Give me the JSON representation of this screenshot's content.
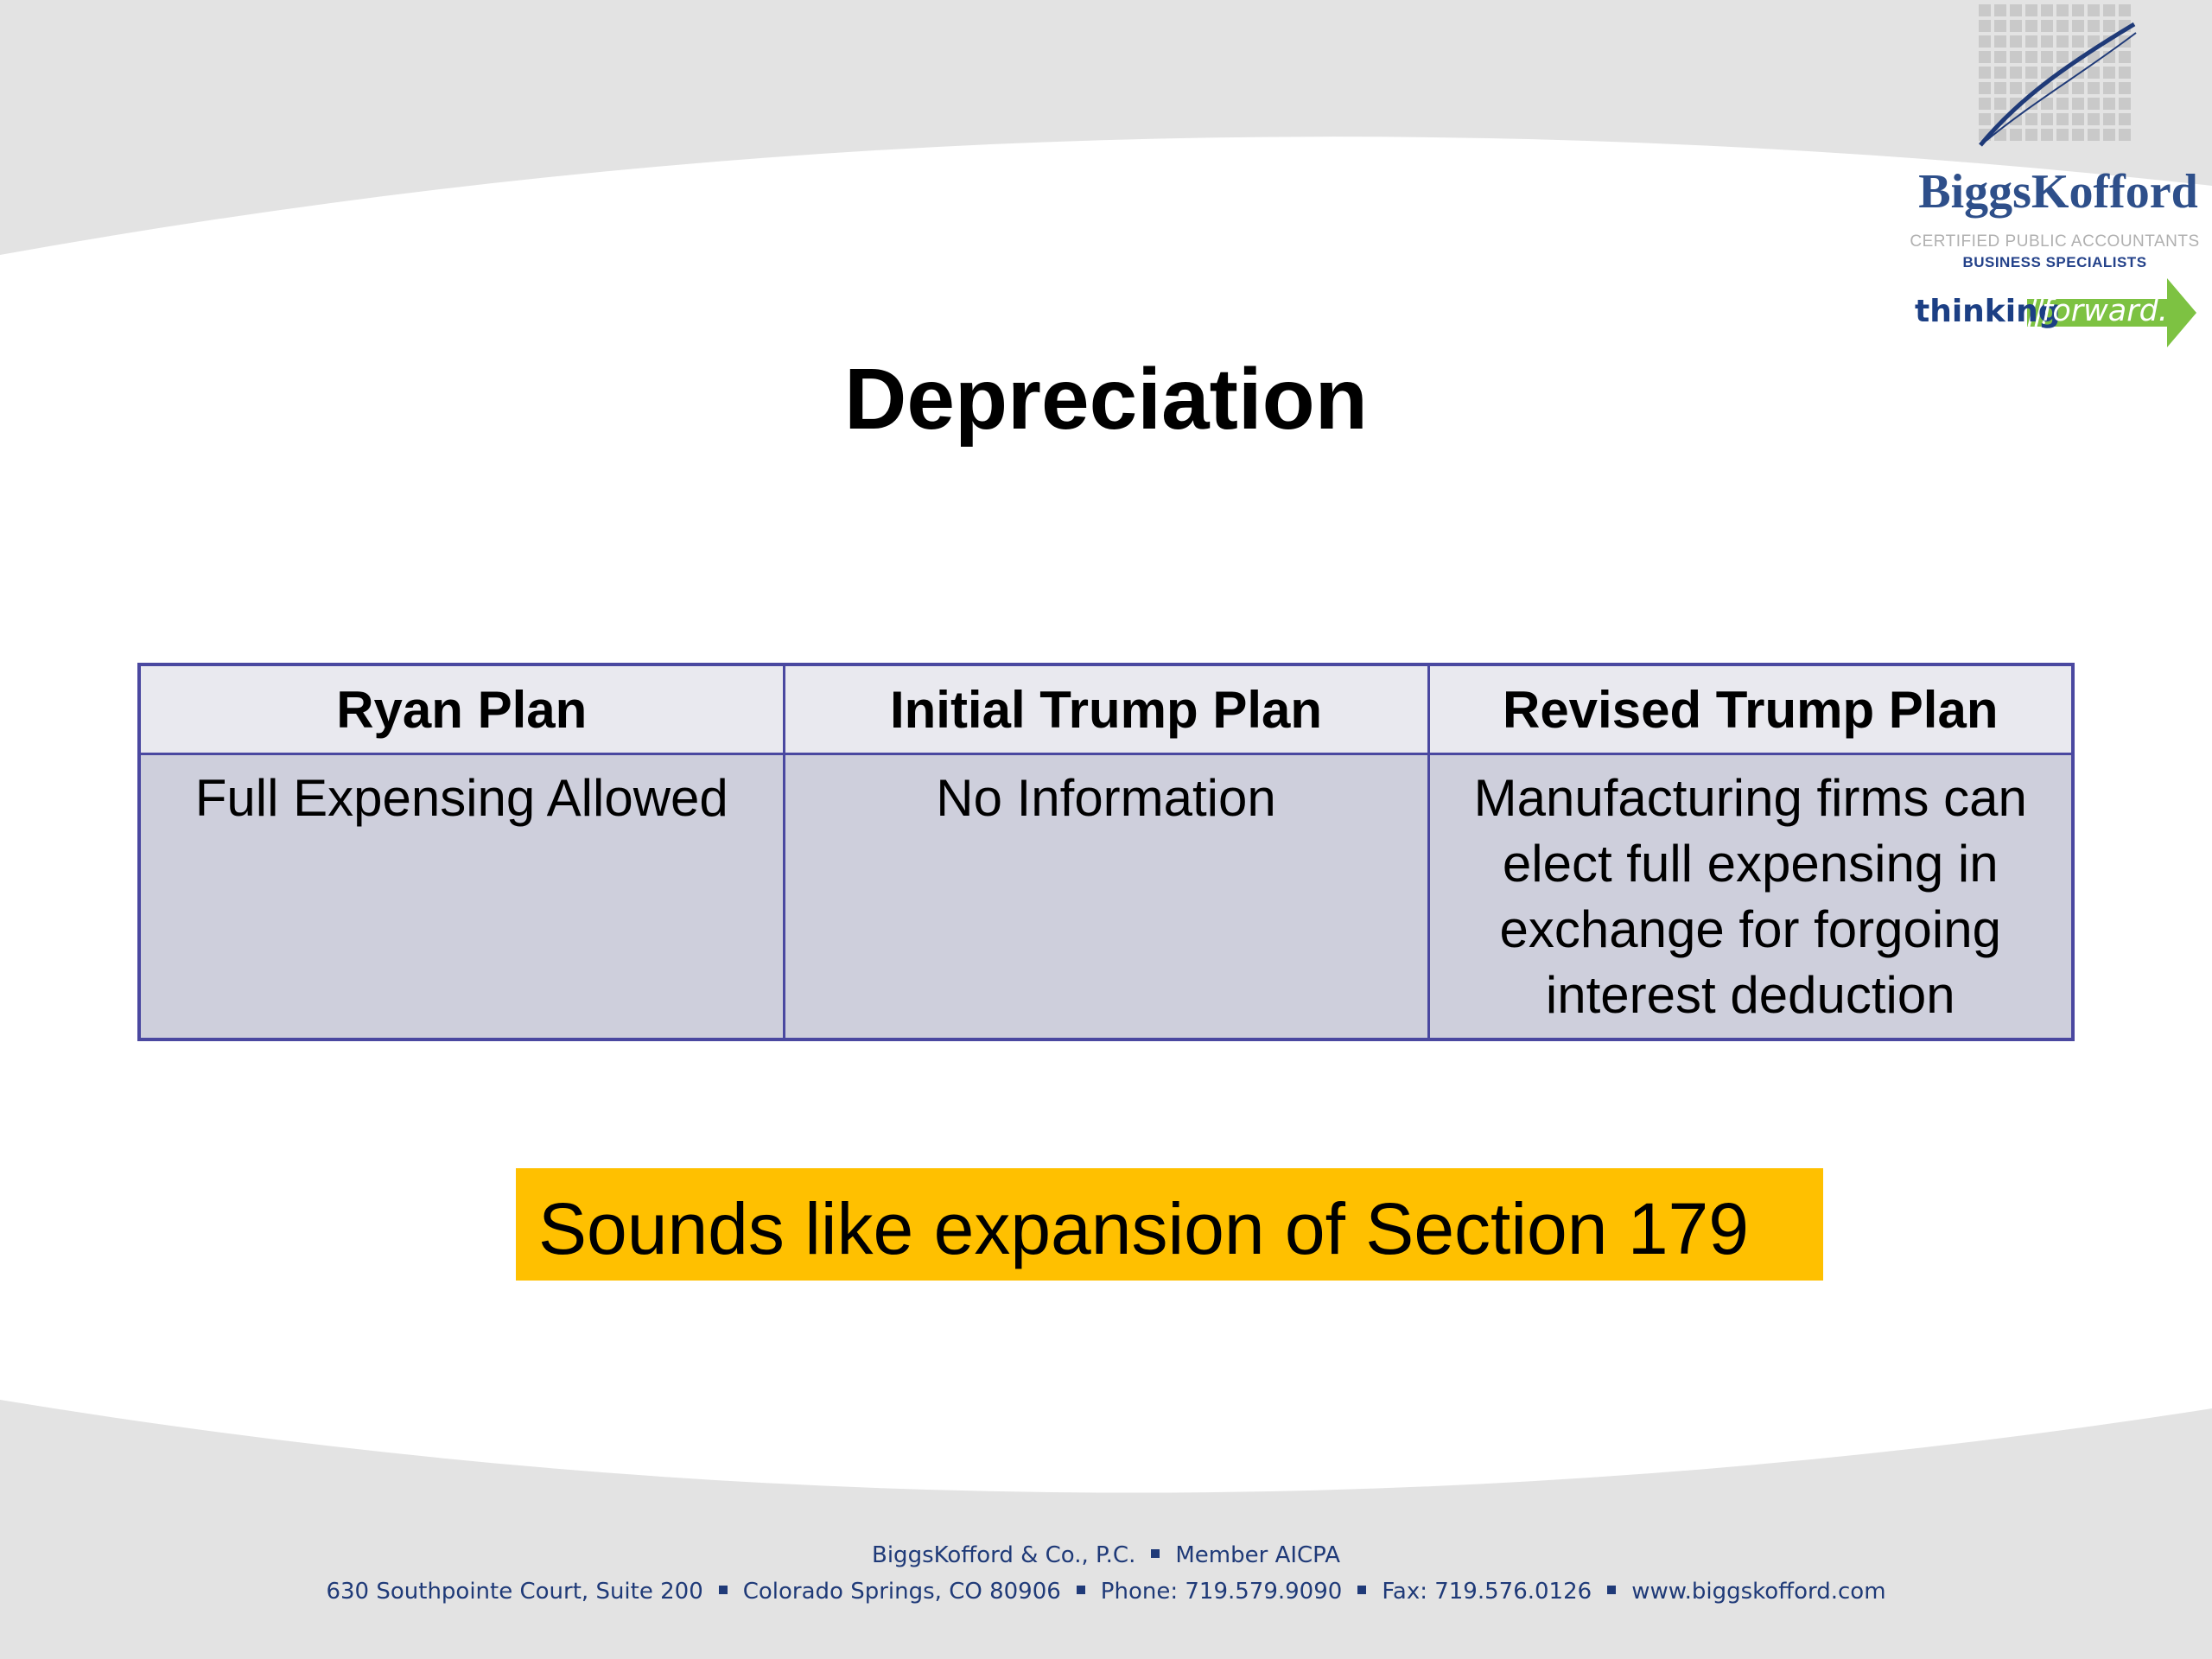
{
  "slide": {
    "title": "Depreciation"
  },
  "logo": {
    "name": "BiggsKofford",
    "subtitle_1": "CERTIFIED PUBLIC ACCOUNTANTS",
    "subtitle_2": "BUSINESS SPECIALISTS",
    "tagline_1": "thinking",
    "tagline_2": "forward."
  },
  "table": {
    "headers": [
      "Ryan Plan",
      "Initial Trump Plan",
      "Revised Trump Plan"
    ],
    "rows": [
      [
        "Full Expensing Allowed",
        "No Information",
        "Manufacturing firms can elect full expensing in exchange for forgoing interest deduction"
      ]
    ]
  },
  "callout": {
    "text": "Sounds like expansion of Section 179"
  },
  "footer": {
    "line1": [
      "BiggsKofford & Co., P.C.",
      "Member AICPA"
    ],
    "line2": [
      "630 Southpointe Court, Suite 200",
      "Colorado Springs, CO 80906",
      "Phone: 719.579.9090",
      "Fax: 719.576.0126",
      "www.biggskofford.com"
    ]
  },
  "colors": {
    "table_border": "#4a48a0",
    "header_fill": "#e9e9ef",
    "body_fill": "#cecfdc",
    "callout_fill": "#ffc000",
    "footer_text": "#1f3a78",
    "logo_blue": "#2e4f8a",
    "arrow_green": "#7dc242",
    "band_gray": "#e3e3e3"
  }
}
